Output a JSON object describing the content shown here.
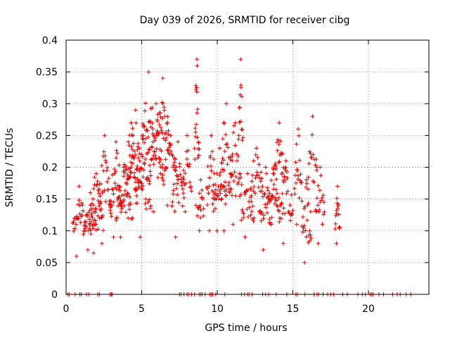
{
  "chart_data": {
    "type": "scatter",
    "title": "Day 039 of 2026, SRMTID for receiver cibg",
    "xlabel": "GPS time / hours",
    "ylabel": "SRMTID / TECUs",
    "xlim": [
      0,
      24
    ],
    "ylim": [
      0,
      0.4
    ],
    "xticks": [
      0,
      5,
      10,
      15,
      20
    ],
    "yticks": [
      0,
      0.05,
      0.1,
      0.15,
      0.2,
      0.25,
      0.3,
      0.35,
      0.4
    ],
    "xtick_labels": [
      "0",
      "5",
      "10",
      "15",
      "20"
    ],
    "ytick_labels": [
      "0",
      "0.05",
      "0.1",
      "0.15",
      "0.2",
      "0.25",
      "0.3",
      "0.35",
      "0.4"
    ],
    "grid": true,
    "marker": "+",
    "color": "#ee0000",
    "series": [
      {
        "name": "SRMTID",
        "description": "Per-satellite-pass samples; approximate digitization",
        "passes": [
          {
            "t0": 0.45,
            "t1": 1.25,
            "lo": 0.06,
            "hi": 0.17,
            "n": 26
          },
          {
            "t0": 1.2,
            "t1": 2.0,
            "lo": 0.07,
            "hi": 0.16,
            "n": 26
          },
          {
            "t0": 1.55,
            "t1": 2.45,
            "lo": 0.065,
            "hi": 0.19,
            "n": 30
          },
          {
            "t0": 2.1,
            "t1": 3.0,
            "lo": 0.08,
            "hi": 0.25,
            "n": 32
          },
          {
            "t0": 2.9,
            "t1": 3.7,
            "lo": 0.09,
            "hi": 0.24,
            "n": 30
          },
          {
            "t0": 3.3,
            "t1": 4.3,
            "lo": 0.09,
            "hi": 0.2,
            "n": 32
          },
          {
            "t0": 3.8,
            "t1": 4.8,
            "lo": 0.12,
            "hi": 0.27,
            "n": 34
          },
          {
            "t0": 4.1,
            "t1": 5.1,
            "lo": 0.12,
            "hi": 0.29,
            "n": 34
          },
          {
            "t0": 4.6,
            "t1": 5.6,
            "lo": 0.09,
            "hi": 0.25,
            "n": 30
          },
          {
            "t0": 5.0,
            "t1": 5.9,
            "lo": 0.15,
            "hi": 0.35,
            "n": 34
          },
          {
            "t0": 5.5,
            "t1": 6.4,
            "lo": 0.13,
            "hi": 0.3,
            "n": 30
          },
          {
            "t0": 6.0,
            "t1": 6.8,
            "lo": 0.19,
            "hi": 0.34,
            "n": 30
          },
          {
            "t0": 6.4,
            "t1": 7.4,
            "lo": 0.14,
            "hi": 0.25,
            "n": 28
          },
          {
            "t0": 7.0,
            "t1": 7.8,
            "lo": 0.09,
            "hi": 0.24,
            "n": 24
          },
          {
            "t0": 7.7,
            "t1": 8.3,
            "lo": 0.13,
            "hi": 0.25,
            "n": 18
          },
          {
            "t0": 8.5,
            "t1": 8.8,
            "lo": 0.14,
            "hi": 0.37,
            "n": 20
          },
          {
            "t0": 8.7,
            "t1": 9.1,
            "lo": 0.1,
            "hi": 0.18,
            "n": 14
          },
          {
            "t0": 9.3,
            "t1": 9.9,
            "lo": 0.1,
            "hi": 0.25,
            "n": 20
          },
          {
            "t0": 9.7,
            "t1": 10.6,
            "lo": 0.1,
            "hi": 0.23,
            "n": 28
          },
          {
            "t0": 10.2,
            "t1": 11.0,
            "lo": 0.1,
            "hi": 0.3,
            "n": 28
          },
          {
            "t0": 10.8,
            "t1": 11.6,
            "lo": 0.11,
            "hi": 0.27,
            "n": 26
          },
          {
            "t0": 11.4,
            "t1": 11.7,
            "lo": 0.19,
            "hi": 0.37,
            "n": 14
          },
          {
            "t0": 11.6,
            "t1": 12.4,
            "lo": 0.09,
            "hi": 0.19,
            "n": 22
          },
          {
            "t0": 12.2,
            "t1": 13.0,
            "lo": 0.12,
            "hi": 0.23,
            "n": 24
          },
          {
            "t0": 12.8,
            "t1": 13.6,
            "lo": 0.07,
            "hi": 0.2,
            "n": 24
          },
          {
            "t0": 13.3,
            "t1": 14.1,
            "lo": 0.11,
            "hi": 0.19,
            "n": 24
          },
          {
            "t0": 13.7,
            "t1": 14.5,
            "lo": 0.14,
            "hi": 0.27,
            "n": 26
          },
          {
            "t0": 14.1,
            "t1": 15.0,
            "lo": 0.08,
            "hi": 0.21,
            "n": 28
          },
          {
            "t0": 15.1,
            "t1": 15.6,
            "lo": 0.11,
            "hi": 0.26,
            "n": 18
          },
          {
            "t0": 15.6,
            "t1": 16.2,
            "lo": 0.05,
            "hi": 0.18,
            "n": 20
          },
          {
            "t0": 16.0,
            "t1": 16.6,
            "lo": 0.13,
            "hi": 0.28,
            "n": 16
          },
          {
            "t0": 16.5,
            "t1": 17.1,
            "lo": 0.08,
            "hi": 0.2,
            "n": 18
          },
          {
            "t0": 17.8,
            "t1": 18.1,
            "lo": 0.08,
            "hi": 0.17,
            "n": 14
          }
        ],
        "zero_points_x": [
          0.1,
          0.2,
          0.6,
          0.9,
          1.0,
          1.35,
          1.5,
          2.1,
          2.2,
          2.9,
          3.0,
          3.05,
          7.5,
          7.6,
          7.8,
          8.0,
          8.1,
          8.3,
          8.5,
          8.8,
          8.9,
          9.0,
          9.2,
          9.5,
          9.6,
          9.7,
          9.9,
          10.5,
          11.6,
          11.8,
          12.0,
          12.1,
          12.3,
          13.0,
          13.2,
          13.4,
          13.9,
          14.6,
          15.2,
          15.3,
          15.8,
          16.4,
          16.6,
          16.7,
          17.0,
          17.3,
          17.5,
          17.7,
          18.3,
          18.6,
          19.3,
          19.6,
          19.8,
          20.1,
          20.2,
          20.3,
          20.7,
          21.0,
          21.6,
          21.9,
          22.1,
          22.5,
          22.8
        ]
      }
    ]
  }
}
